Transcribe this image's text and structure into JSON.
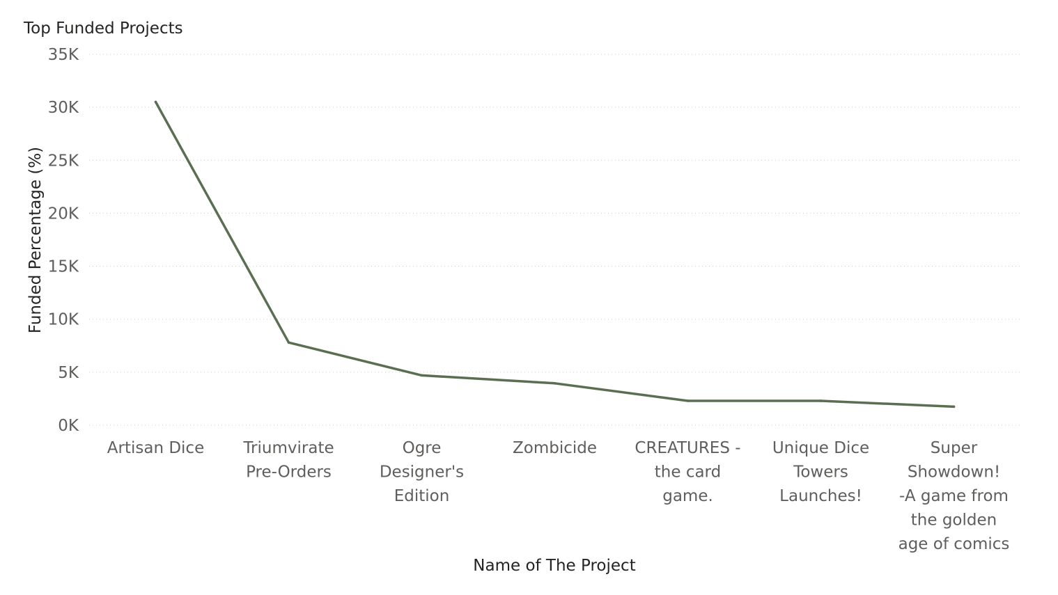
{
  "chart_data": {
    "type": "line",
    "title": "Top Funded Projects",
    "xlabel": "Name of The Project",
    "ylabel": "Funded Percentage (%)",
    "ylim": [
      0,
      35000
    ],
    "yticks": [
      {
        "value": 0,
        "label": "0K"
      },
      {
        "value": 5000,
        "label": "5K"
      },
      {
        "value": 10000,
        "label": "10K"
      },
      {
        "value": 15000,
        "label": "15K"
      },
      {
        "value": 20000,
        "label": "20K"
      },
      {
        "value": 25000,
        "label": "25K"
      },
      {
        "value": 30000,
        "label": "30K"
      },
      {
        "value": 35000,
        "label": "35K"
      }
    ],
    "grid": true,
    "legend": "none",
    "color": "#5a6e52",
    "categories": [
      [
        "Artisan Dice"
      ],
      [
        "Triumvirate",
        "Pre-Orders"
      ],
      [
        "Ogre",
        "Designer's",
        "Edition"
      ],
      [
        "Zombicide"
      ],
      [
        "CREATURES -",
        "the card",
        "game."
      ],
      [
        "Unique Dice",
        "Towers",
        "Launches!"
      ],
      [
        "Super",
        "Showdown!",
        "-A game from",
        "the golden",
        "age of comics"
      ]
    ],
    "values": [
      30500,
      7800,
      4700,
      3950,
      2300,
      2300,
      1750
    ]
  }
}
